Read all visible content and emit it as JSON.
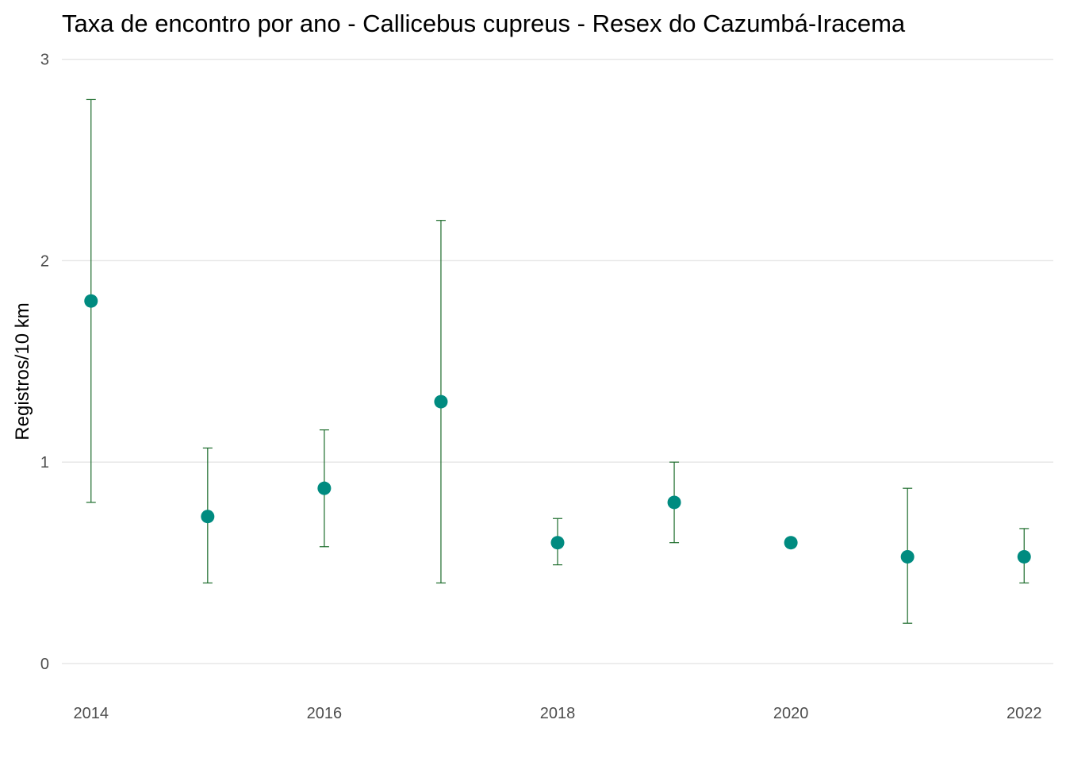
{
  "chart_data": {
    "type": "scatter",
    "title": "Taxa de encontro por ano - Callicebus cupreus - Resex do Cazumbá-Iracema",
    "xlabel": "",
    "ylabel": "Registros/10 km",
    "xlim": [
      2013.75,
      2022.25
    ],
    "ylim": [
      -0.15,
      3.05
    ],
    "x_ticks": [
      2014,
      2016,
      2018,
      2020,
      2022
    ],
    "x_tick_labels": [
      "2014",
      "2016",
      "2018",
      "2020",
      "2022"
    ],
    "y_ticks": [
      0,
      1,
      2,
      3
    ],
    "y_tick_labels": [
      "0",
      "1",
      "2",
      "3"
    ],
    "grid": true,
    "legend": "none",
    "series": [
      {
        "x": [
          2014,
          2015,
          2016,
          2017,
          2018,
          2019,
          2020,
          2021,
          2022
        ],
        "y": [
          1.8,
          0.73,
          0.87,
          1.3,
          0.6,
          0.8,
          0.6,
          0.53,
          0.53
        ],
        "error_low": [
          0.8,
          0.4,
          0.58,
          0.4,
          0.49,
          0.6,
          0.6,
          0.2,
          0.4
        ],
        "error_high": [
          2.8,
          1.07,
          1.16,
          2.2,
          0.72,
          1.0,
          0.6,
          0.87,
          0.67
        ]
      }
    ],
    "colors": {
      "point": "#008b80",
      "errorbar": "#1b6b2a",
      "grid": "#e5e5e5",
      "tick_label": "#4d4d4d",
      "title": "#000000"
    }
  }
}
